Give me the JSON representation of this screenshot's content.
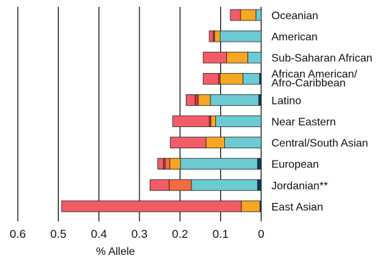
{
  "chart_data": {
    "type": "bar",
    "orientation": "horizontal",
    "stacked": true,
    "x_direction": "reversed",
    "xlim": [
      0,
      0.6
    ],
    "xticks": [
      0.6,
      0.5,
      0.4,
      0.3,
      0.2,
      0.1,
      0
    ],
    "xtick_labels": [
      "0.6",
      "0.5",
      "0.4",
      "0.3",
      "0.2",
      "0.1",
      "0"
    ],
    "xlabel": "% Allele",
    "grid": "vertical",
    "categories": [
      "Oceanian",
      "American",
      "Sub-Saharan African",
      "African American/\nAfro-Caribbean",
      "Latino",
      "Near Eastern",
      "Central/South Asian",
      "European",
      "Jordanian**",
      "East Asian"
    ],
    "colors": [
      "#0d3c55",
      "#6ccbd2",
      "#f5a623",
      "#f26d3d",
      "#d9323f",
      "#f25c66"
    ],
    "series": [
      {
        "values": [
          0,
          0,
          0,
          0.004,
          0.006,
          0,
          0,
          0.009,
          0.009,
          0.003
        ]
      },
      {
        "values": [
          0.013,
          0.101,
          0.033,
          0.041,
          0.119,
          0.112,
          0.09,
          0.19,
          0.163,
          0
        ]
      },
      {
        "values": [
          0.038,
          0.014,
          0.052,
          0.056,
          0.03,
          0.012,
          0.046,
          0.026,
          0,
          0.046
        ]
      },
      {
        "values": [
          0,
          0,
          0,
          0,
          0,
          0,
          0,
          0.012,
          0.055,
          0
        ]
      },
      {
        "values": [
          0,
          0.003,
          0,
          0.004,
          0.008,
          0.004,
          0,
          0.004,
          0,
          0
        ]
      },
      {
        "values": [
          0.025,
          0.01,
          0.058,
          0.038,
          0.022,
          0.09,
          0.088,
          0.014,
          0.047,
          0.443
        ]
      }
    ]
  }
}
